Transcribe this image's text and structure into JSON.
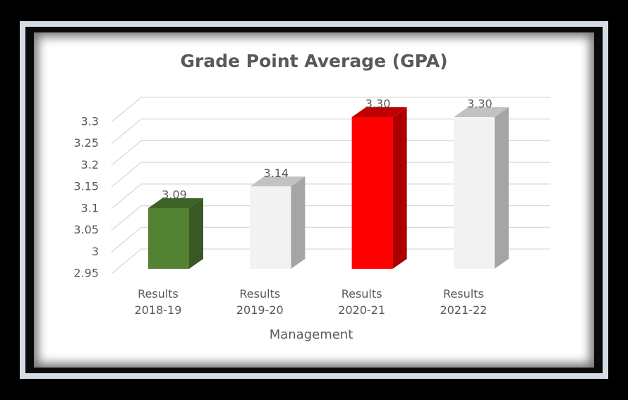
{
  "chart_data": {
    "type": "bar3d",
    "title": "Grade Point Average (GPA)",
    "categories": [
      "Results 2018-19",
      "Results 2019-20",
      "Results 2020-21",
      "Results 2021-22"
    ],
    "values": [
      3.09,
      3.14,
      3.3,
      3.3
    ],
    "value_labels": [
      "3.09",
      "3.14",
      "3.30",
      "3.30"
    ],
    "colors": [
      "#548235",
      "#f2f2f2",
      "#ff0000",
      "#f2f2f2"
    ],
    "xlabel": "Management",
    "ylim": [
      2.95,
      3.3
    ],
    "yticks": [
      2.95,
      3,
      3.05,
      3.1,
      3.15,
      3.2,
      3.25,
      3.3
    ],
    "grid": true
  }
}
